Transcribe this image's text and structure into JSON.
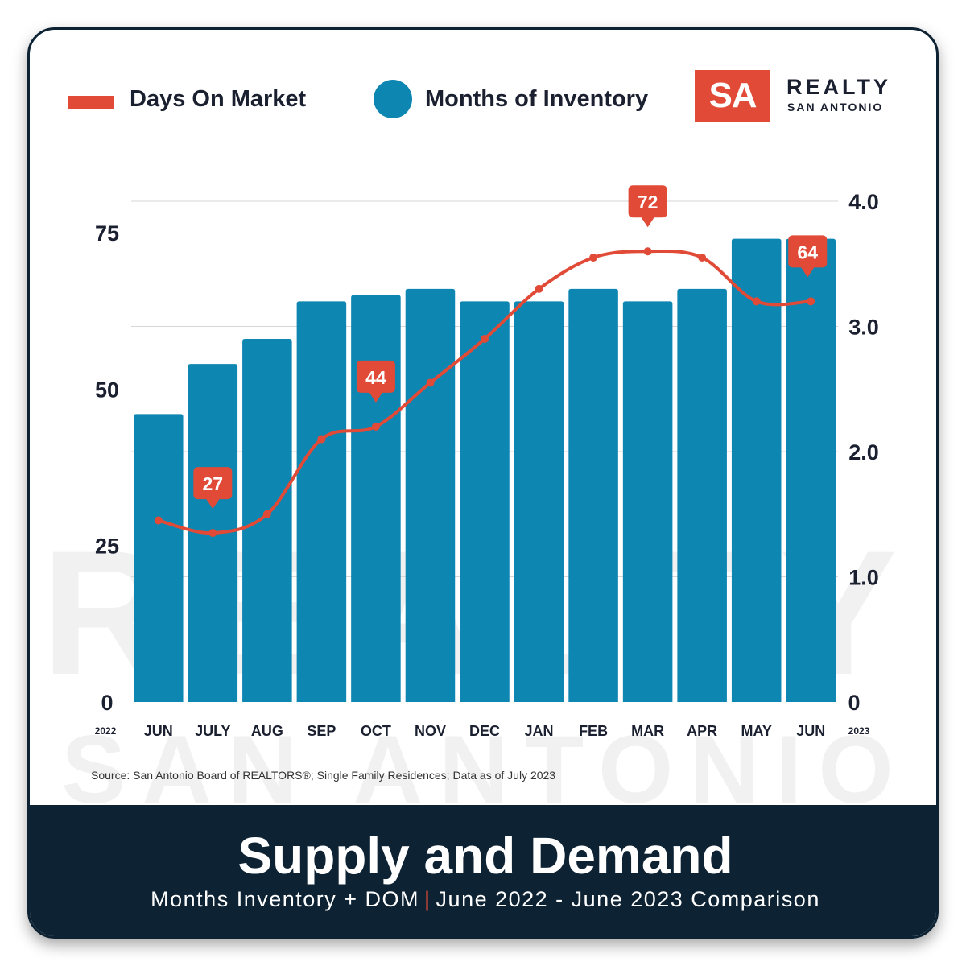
{
  "legend": {
    "line_label": "Days On Market",
    "bar_label": "Months of Inventory"
  },
  "logo": {
    "mark": "SA",
    "line1": "REALTY",
    "line2": "SAN ANTONIO"
  },
  "watermark": {
    "line1": "REALTY",
    "line2": "SAN ANTONIO"
  },
  "colors": {
    "bar": "#0e86b2",
    "line": "#e04a36",
    "footer": "#0d2233"
  },
  "chart_data": {
    "type": "bar",
    "categories": [
      "JUN",
      "JULY",
      "AUG",
      "SEP",
      "OCT",
      "NOV",
      "DEC",
      "JAN",
      "FEB",
      "MAR",
      "APR",
      "MAY",
      "JUN"
    ],
    "start_label": "2022",
    "end_label": "2023",
    "series": [
      {
        "name": "Months of Inventory",
        "type": "bar",
        "axis": "right",
        "values": [
          2.3,
          2.7,
          2.9,
          3.2,
          3.25,
          3.3,
          3.2,
          3.2,
          3.3,
          3.2,
          3.3,
          3.7,
          3.7
        ]
      },
      {
        "name": "Days On Market",
        "type": "line",
        "axis": "left",
        "values": [
          29,
          27,
          30,
          42,
          44,
          51,
          58,
          66,
          71,
          72,
          71,
          64,
          64
        ],
        "labeled_points": [
          {
            "index": 1,
            "label": "27"
          },
          {
            "index": 4,
            "label": "44"
          },
          {
            "index": 9,
            "label": "72"
          },
          {
            "index": 12,
            "label": "64"
          }
        ]
      }
    ],
    "left_axis": {
      "ticks": [
        {
          "value": 0,
          "label": "0"
        },
        {
          "value": 25,
          "label": "25"
        },
        {
          "value": 50,
          "label": "50"
        },
        {
          "value": 75,
          "label": "75"
        }
      ],
      "ylim": [
        0,
        80
      ]
    },
    "right_axis": {
      "ticks": [
        {
          "value": 0,
          "label": "0"
        },
        {
          "value": 1,
          "label": "1.0"
        },
        {
          "value": 2,
          "label": "2.0"
        },
        {
          "value": 3,
          "label": "3.0"
        },
        {
          "value": 4,
          "label": "4.0"
        }
      ],
      "ylim": [
        0,
        4
      ]
    },
    "grid": true
  },
  "source": "Source: San Antonio Board of REALTORS®; Single Family Residences; Data as of July 2023",
  "footer": {
    "title": "Supply and Demand",
    "subtitle_left": "Months Inventory + DOM",
    "separator": "|",
    "subtitle_right": "June 2022 - June 2023 Comparison"
  }
}
